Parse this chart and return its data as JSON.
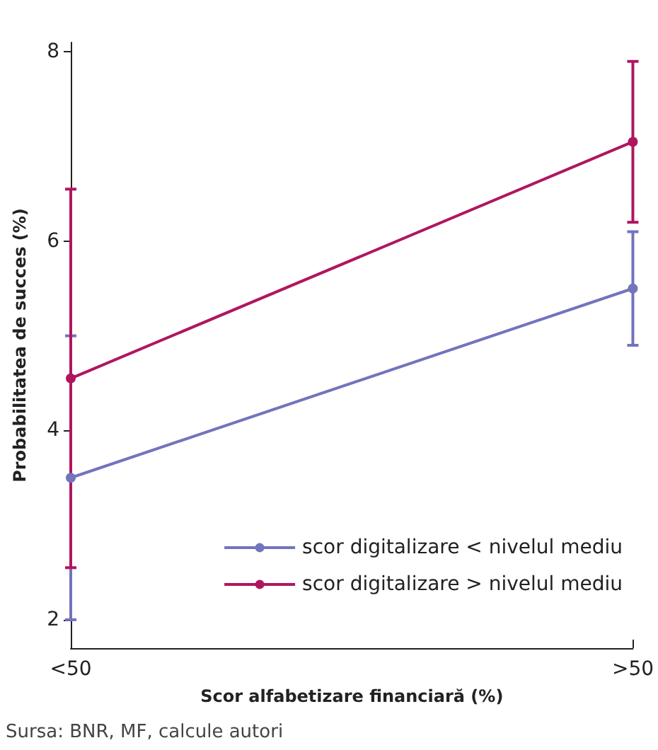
{
  "chart_data": {
    "type": "line",
    "xlabel": "Scor alfabetizare financiară (%)",
    "ylabel": "Probabilitatea de succes (%)",
    "categories": [
      "<50",
      ">50"
    ],
    "series": [
      {
        "name": "scor digitalizare < nivelul mediu",
        "color": "#7274bd",
        "values": [
          3.5,
          5.5
        ],
        "errors": [
          [
            2.0,
            5.0
          ],
          [
            4.9,
            6.1
          ]
        ]
      },
      {
        "name": "scor digitalizare > nivelul mediu",
        "color": "#b0165e",
        "values": [
          4.55,
          7.05
        ],
        "errors": [
          [
            2.55,
            6.55
          ],
          [
            6.2,
            7.9
          ]
        ]
      }
    ],
    "ylim": [
      1.7,
      8.1
    ],
    "yticks": [
      2,
      4,
      6,
      8
    ],
    "grid": false,
    "legend": "bottom right",
    "marker": "circle",
    "line_style": "solid",
    "annotations": [
      "Sursa: BNR, MF, calcule autori"
    ]
  }
}
